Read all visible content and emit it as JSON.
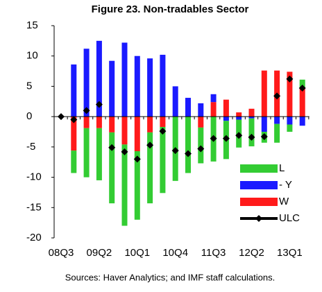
{
  "chart_data": {
    "type": "bar-line",
    "title": "Figure 23. Non-tradables Sector",
    "source": "Sources: Haver Analytics; and IMF staff calculations.",
    "categories": [
      "08Q3",
      null,
      null,
      "09Q2",
      null,
      null,
      "10Q1",
      null,
      null,
      "10Q4",
      null,
      null,
      "11Q3",
      null,
      null,
      "12Q2",
      null,
      null,
      "13Q1",
      null
    ],
    "series": [
      {
        "name": "L",
        "type": "bar",
        "color": "#33cc33",
        "values": [
          0,
          -3.7,
          -8.1,
          -8.6,
          -11.7,
          -13.4,
          -11.3,
          -11.7,
          -10.9,
          -10.6,
          -9.3,
          -5.9,
          -7.4,
          -6.3,
          -4.6,
          -4.6,
          -1.8,
          -3.1,
          -1.2,
          1.3
        ]
      },
      {
        "name": "- Y",
        "type": "bar",
        "color": "#1a1aff",
        "values": [
          0,
          8.6,
          11.2,
          12.5,
          9.2,
          12.2,
          10,
          9.6,
          10.2,
          5,
          3.1,
          2.2,
          1.3,
          -0.7,
          -0.5,
          -0.3,
          -2.5,
          -1.2,
          -1.3,
          -1.5
        ]
      },
      {
        "name": "W",
        "type": "bar",
        "color": "#ff1a1a",
        "values": [
          0,
          -5.6,
          -1.9,
          -1.9,
          -2.6,
          -4.6,
          -5.7,
          -2.6,
          -1.7,
          0,
          0,
          -1.8,
          2.4,
          2.8,
          0.7,
          1.3,
          7.6,
          7.6,
          7.4,
          4.8
        ]
      },
      {
        "name": "ULC",
        "type": "line",
        "color": "#000000",
        "values": [
          0,
          -0.5,
          1,
          2,
          -5.1,
          -5.8,
          -7,
          -4.7,
          -2.4,
          -5.6,
          -6.1,
          -5.3,
          -3.6,
          -3.6,
          -3.1,
          -3.4,
          -3.3,
          3.4,
          6.2,
          4.7
        ]
      }
    ],
    "ylim": [
      -20,
      15
    ],
    "yticks": [
      -20,
      -15,
      -10,
      -5,
      0,
      5,
      10,
      15
    ]
  }
}
